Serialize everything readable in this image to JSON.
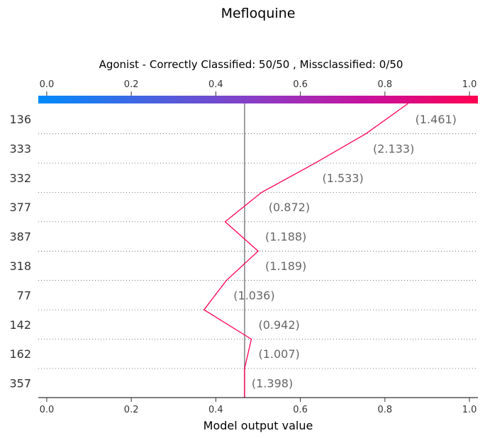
{
  "chart_data": {
    "type": "line",
    "title": "Mefloquine",
    "subtitle": "Agonist - Correctly Classified: 50/50 , Missclassified: 0/50",
    "xlabel": "Model output value",
    "xlim": [
      -0.02,
      1.02
    ],
    "xticks": [
      0.0,
      0.2,
      0.4,
      0.6,
      0.8,
      1.0
    ],
    "top_axis_ticks": [
      "0.0",
      "0.2",
      "0.4",
      "0.6",
      "0.8",
      "1.0"
    ],
    "bottom_axis_ticks": [
      "0.0",
      "0.2",
      "0.4",
      "0.6",
      "0.8",
      "1.0"
    ],
    "base_value": 0.468,
    "features": [
      "136",
      "333",
      "332",
      "377",
      "387",
      "318",
      "77",
      "142",
      "162",
      "357"
    ],
    "feature_values": [
      "(1.461)",
      "(2.133)",
      "(1.533)",
      "(0.872)",
      "(1.188)",
      "(1.189)",
      "(1.036)",
      "(0.942)",
      "(1.007)",
      "(1.398)"
    ],
    "path_x": [
      0.855,
      0.755,
      0.635,
      0.508,
      0.422,
      0.5,
      0.425,
      0.372,
      0.484,
      0.468
    ],
    "line_color": "#ff0051",
    "colormap": [
      "#008bfb",
      "#ff0052"
    ]
  }
}
